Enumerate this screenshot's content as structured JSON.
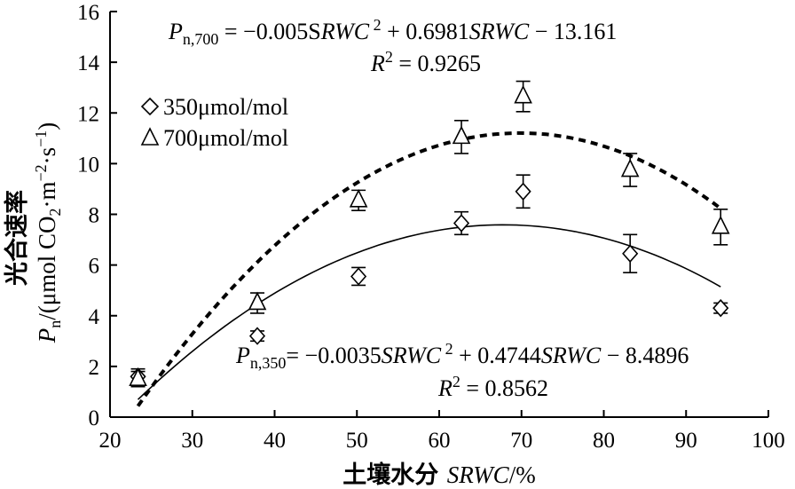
{
  "chart_data": {
    "type": "scatter",
    "xlabel": {
      "prefix": "土壤水分 ",
      "italic": "SRWC",
      "suffix": "/%"
    },
    "ylabel": {
      "line1": "光合速率",
      "line2_italic": "P",
      "line2_sub": "n",
      "line2_text": "/(μmol CO",
      "line2_sub2": "2",
      "line2_text2": "·m",
      "line2_sup": "−2",
      "line2_text3": "·s",
      "line2_sup2": "−1",
      "line2_text4": ")"
    },
    "xlim": [
      20,
      100
    ],
    "ylim": [
      0,
      16
    ],
    "xticks": [
      "20",
      "30",
      "40",
      "50",
      "60",
      "70",
      "80",
      "90",
      "100"
    ],
    "yticks": [
      "0",
      "2",
      "4",
      "6",
      "8",
      "10",
      "12",
      "14",
      "16"
    ],
    "grid": false,
    "legend_position": "upper-left",
    "series": [
      {
        "name": "350μmol/mol",
        "marker": "diamond",
        "line_style": "solid",
        "x": [
          23.4,
          37.9,
          50.2,
          62.7,
          70.2,
          83.2,
          94.2
        ],
        "y": [
          1.6,
          3.2,
          5.55,
          7.65,
          8.9,
          6.45,
          4.3
        ],
        "error": [
          0.3,
          0.2,
          0.35,
          0.45,
          0.65,
          0.75,
          0.2
        ],
        "fit": {
          "a": -0.0035,
          "b": 0.4744,
          "c": -8.4896,
          "x_range": [
            23.4,
            94.2
          ]
        }
      },
      {
        "name": "700μmol/mol",
        "marker": "triangle",
        "line_style": "dashed",
        "x": [
          23.4,
          37.9,
          50.2,
          62.7,
          70.2,
          83.2,
          94.2
        ],
        "y": [
          1.5,
          4.5,
          8.55,
          11.05,
          12.65,
          9.75,
          7.5
        ],
        "error": [
          0.3,
          0.4,
          0.4,
          0.65,
          0.6,
          0.65,
          0.7
        ],
        "fit": {
          "a": -0.005,
          "b": 0.6981,
          "c": -13.161,
          "x_range": [
            23.4,
            94.2
          ]
        }
      }
    ],
    "equations": [
      {
        "series": "700μmol/mol",
        "lhs_italic": "P",
        "lhs_sub": "n,700",
        "rhs_1": " = −0.005S",
        "rhs_1_italic": "RWC",
        "rhs_sup": " 2",
        "rhs_2": " + 0.6981",
        "rhs_2_italic": "SRWC",
        "rhs_3": " − 13.161",
        "r2_italic": "R",
        "r2_sup": "2",
        "r2_value": " = 0.9265"
      },
      {
        "series": "350μmol/mol",
        "lhs_italic": "P",
        "lhs_sub": "n,350",
        "rhs_1": "= −0.0035",
        "rhs_1_italic": "SRWC",
        "rhs_sup": " 2",
        "rhs_2": " + 0.4744",
        "rhs_2_italic": "SRWC",
        "rhs_3": " − 8.4896",
        "r2_italic": "R",
        "r2_sup": "2",
        "r2_value": " = 0.8562"
      }
    ]
  }
}
